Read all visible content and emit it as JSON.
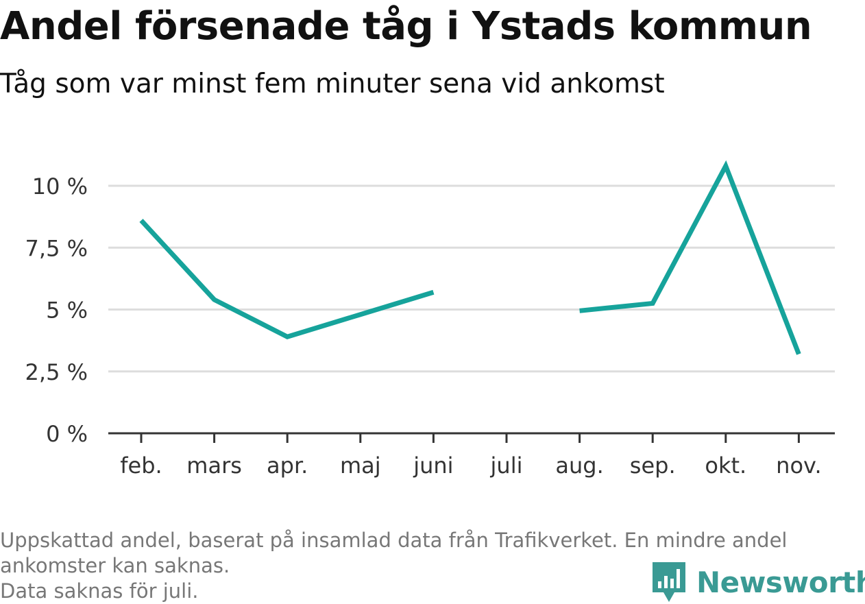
{
  "header": {
    "title": "Andel försenade tåg i Ystads kommun",
    "subtitle": "Tåg som var minst fem minuter sena vid ankomst"
  },
  "footnote": {
    "line1": "Uppskattad andel, baserat på insamlad data från Trafikverket. En mindre andel",
    "line2": "ankomster kan saknas.",
    "line3": "Data saknas för juli."
  },
  "brand": {
    "name": "Newsworthy",
    "icon": "newsworthy-logo-icon"
  },
  "colors": {
    "line": "#16a39b",
    "grid": "#dddddd",
    "axis": "#333333",
    "brand": "#3a9a94"
  },
  "chart_data": {
    "type": "line",
    "categories": [
      "feb.",
      "mars",
      "apr.",
      "maj",
      "juni",
      "juli",
      "aug.",
      "sep.",
      "okt.",
      "nov."
    ],
    "series": [
      {
        "values": [
          8.6,
          5.4,
          3.9,
          4.8,
          5.7,
          null,
          4.95,
          5.25,
          10.8,
          3.2
        ]
      }
    ],
    "ylim": [
      0,
      11
    ],
    "yticks": [
      0,
      2.5,
      5,
      7.5,
      10
    ],
    "ytick_labels": [
      "0 %",
      "2,5 %",
      "5 %",
      "7,5 %",
      "10 %"
    ],
    "grid": true,
    "legend": "none"
  }
}
